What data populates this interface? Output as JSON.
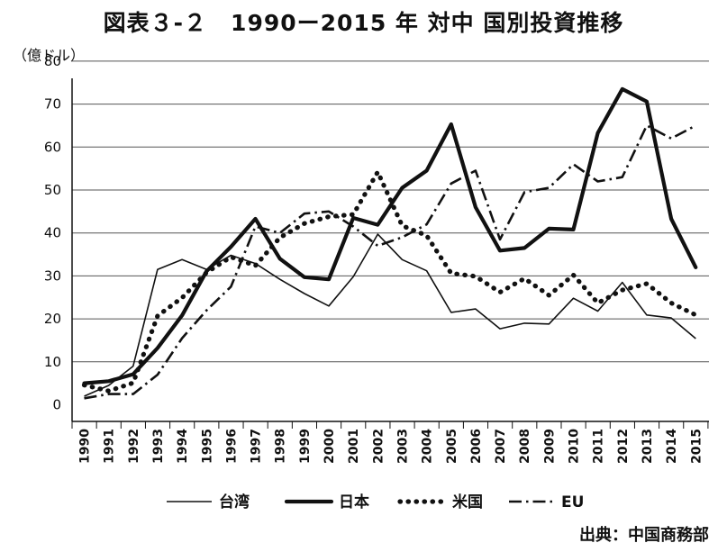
{
  "chart_data": {
    "type": "line",
    "title": "図表３-２　1990ー2015 年 対中 国別投資推移",
    "ylabel": "（億ドル）",
    "source": "出典：中国商務部",
    "x": [
      "1990",
      "1991",
      "1992",
      "1993",
      "1994",
      "1995",
      "1996",
      "1997",
      "1998",
      "1999",
      "2000",
      "2001",
      "2002",
      "2003",
      "2004",
      "2005",
      "2006",
      "2007",
      "2008",
      "2009",
      "2010",
      "2011",
      "2012",
      "2013",
      "2014",
      "2015"
    ],
    "yticks": [
      0,
      10,
      20,
      30,
      40,
      50,
      60,
      70,
      80
    ],
    "ylim": [
      0,
      80
    ],
    "grid": true,
    "legend_position": "bottom",
    "series": [
      {
        "name": "台湾",
        "style": "thin",
        "values": [
          2,
          4.5,
          9,
          31.5,
          33.8,
          31.5,
          34.8,
          32.9,
          29.2,
          25.9,
          23,
          29.8,
          39.7,
          33.8,
          31.2,
          21.5,
          22.3,
          17.7,
          19,
          18.8,
          24.8,
          21.8,
          28.5,
          20.9,
          20.2,
          15.4
        ]
      },
      {
        "name": "日本",
        "style": "thick",
        "values": [
          5.0,
          5.5,
          7.1,
          13.2,
          20.8,
          31.1,
          36.8,
          43.3,
          34.0,
          29.7,
          29.2,
          43.5,
          41.9,
          50.5,
          54.5,
          65.3,
          46.0,
          35.9,
          36.5,
          41.0,
          40.8,
          63.3,
          73.5,
          70.6,
          43.3,
          32.0
        ]
      },
      {
        "name": "米国",
        "style": "dotted",
        "values": [
          4.6,
          3.2,
          5.1,
          20.7,
          24.9,
          30.8,
          34.4,
          32.4,
          38.9,
          42.2,
          43.8,
          44.3,
          54.2,
          41.7,
          39.4,
          30.6,
          29.9,
          26.2,
          29.4,
          25.5,
          30.2,
          23.7,
          26.7,
          28.2,
          23.7,
          20.9
        ]
      },
      {
        "name": "EU",
        "style": "dashdot",
        "values": [
          1.5,
          2.5,
          2.5,
          7,
          15.5,
          22,
          27.5,
          41.5,
          40,
          44.5,
          45,
          41.5,
          37,
          39,
          42,
          51.5,
          54.5,
          38.5,
          49.5,
          50.5,
          56,
          52,
          53,
          65,
          62,
          65
        ]
      }
    ]
  }
}
